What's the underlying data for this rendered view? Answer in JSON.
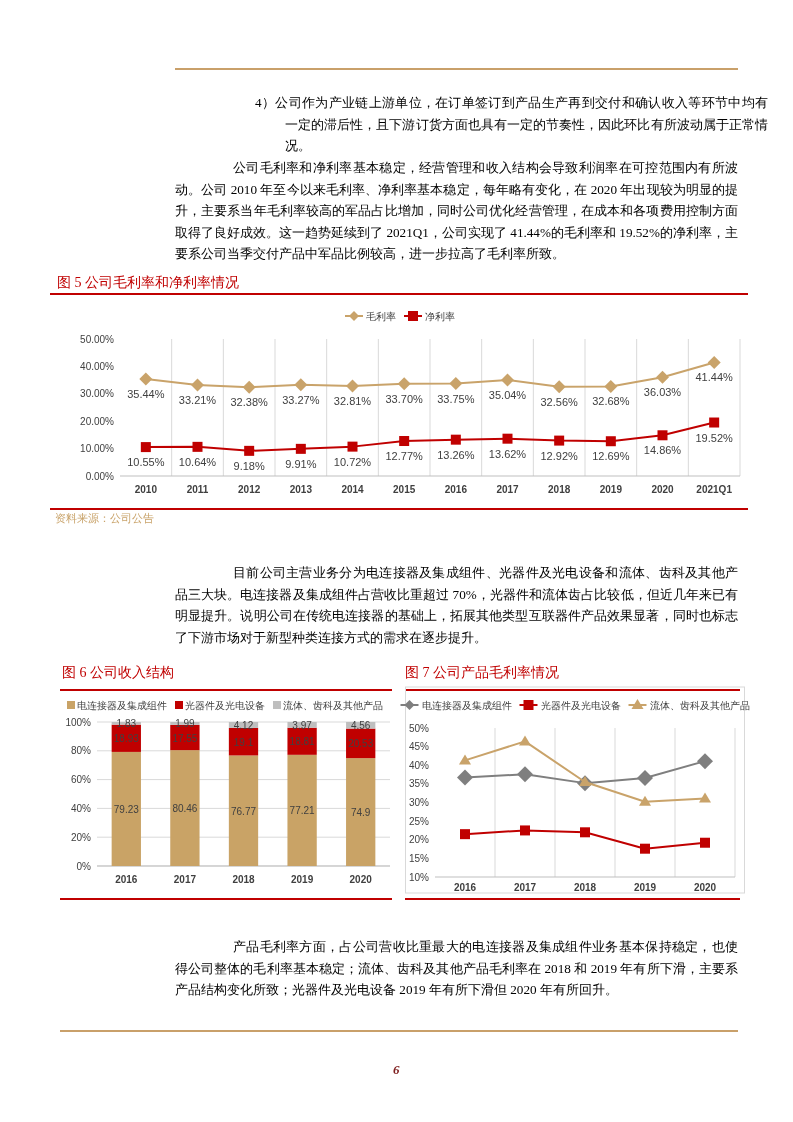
{
  "chart_data": [
    {
      "type": "line",
      "title": "图 5   公司毛利率和净利率情况",
      "categories": [
        "2010",
        "2011",
        "2012",
        "2013",
        "2014",
        "2015",
        "2016",
        "2017",
        "2018",
        "2019",
        "2020",
        "2021Q1"
      ],
      "series": [
        {
          "name": "毛利率",
          "color": "#c9a36a",
          "marker": "diamond",
          "values": [
            35.44,
            33.21,
            32.38,
            33.27,
            32.81,
            33.7,
            33.75,
            35.04,
            32.56,
            32.68,
            36.03,
            41.44
          ],
          "value_labels": [
            "35.44%",
            "33.21%",
            "32.38%",
            "33.27%",
            "32.81%",
            "33.70%",
            "33.75%",
            "35.04%",
            "32.56%",
            "32.68%",
            "36.03%",
            "41.44%"
          ]
        },
        {
          "name": "净利率",
          "color": "#c00000",
          "marker": "square",
          "values": [
            10.55,
            10.64,
            9.18,
            9.91,
            10.72,
            12.77,
            13.26,
            13.62,
            12.92,
            12.69,
            14.86,
            19.52
          ],
          "value_labels": [
            "10.55%",
            "10.64%",
            "9.18%",
            "9.91%",
            "10.72%",
            "12.77%",
            "13.26%",
            "13.62%",
            "12.92%",
            "12.69%",
            "14.86%",
            "19.52%"
          ]
        }
      ],
      "ylim": [
        0,
        50
      ],
      "yticks": [
        {
          "value": 0,
          "label": "0.00%"
        },
        {
          "value": 10,
          "label": "10.00%"
        },
        {
          "value": 20,
          "label": "20.00%"
        },
        {
          "value": 30,
          "label": "30.00%"
        },
        {
          "value": 40,
          "label": "40.00%"
        },
        {
          "value": 50,
          "label": "50.00%"
        }
      ],
      "grid": "x",
      "legend": "top",
      "annotations": [
        "4）公司作为产业链上游单位，在订单签订到产品生产再到交付和确认收入等环节中均有一定的滞后性，且下游订货方面也具有一定的节奏性，因此环比有所波动属于正常情况。",
        "公司毛利率和净利率基本稳定，经营管理和收入结构会导致利润率在可控范围内有所波动。公司 2010 年至今以来毛利率、净利率基本稳定，每年略有变化，在 2020 年出现较为明显的提升，主要系当年毛利率较高的军品占比增加，同时公司优化经营管理，在成本和各项费用控制方面取得了良好成效。这一趋势延续到了 2021Q1，公司实现了 41.44%的毛利率和 19.52%的净利率，主要系公司当季交付产品中军品比例较高，进一步拉高了毛利率所致。",
        "资料来源：公司公告"
      ]
    },
    {
      "type": "bar",
      "stacked": true,
      "title": "图 6   公司收入结构",
      "categories": [
        "2016",
        "2017",
        "2018",
        "2019",
        "2020"
      ],
      "series": [
        {
          "name": "电连接器及集成组件",
          "color": "#c9a366",
          "values": [
            79.23,
            80.46,
            76.77,
            77.21,
            74.9
          ]
        },
        {
          "name": "光器件及光电设备",
          "color": "#c00000",
          "values": [
            18.93,
            17.55,
            19.1,
            18.81,
            20.53
          ]
        },
        {
          "name": "流体、齿科及其他产品",
          "color": "#bfbfbf",
          "values": [
            1.83,
            1.99,
            4.12,
            3.97,
            4.56
          ]
        }
      ],
      "ylim": [
        0,
        100
      ],
      "yticks": [
        {
          "value": 0,
          "label": "0%"
        },
        {
          "value": 20,
          "label": "20%"
        },
        {
          "value": 40,
          "label": "40%"
        },
        {
          "value": 60,
          "label": "60%"
        },
        {
          "value": 80,
          "label": "80%"
        },
        {
          "value": 100,
          "label": "100%"
        }
      ],
      "grid": "y",
      "legend": "top",
      "data_labels": true,
      "annotations": [
        "目前公司主营业务分为电连接器及集成组件、光器件及光电设备和流体、齿科及其他产品三大块。电连接器及集成组件占营收比重超过 70%，光器件和流体齿占比较低，但近几年来已有明显提升。说明公司在传统电连接器的基础上，拓展其他类型互联器件产品效果显著，同时也标志了下游市场对于新型种类连接方式的需求在逐步提升。"
      ]
    },
    {
      "type": "line",
      "title": "图 7   公司产品毛利率情况",
      "categories": [
        "2016",
        "2017",
        "2018",
        "2019",
        "2020"
      ],
      "series": [
        {
          "name": "电连接器及集成组件",
          "color": "#7f7f7f",
          "marker": "diamond",
          "values": [
            36.7,
            37.6,
            35.2,
            36.6,
            41.1
          ]
        },
        {
          "name": "光器件及光电设备",
          "color": "#c00000",
          "marker": "square",
          "values": [
            21.5,
            22.5,
            22.0,
            17.6,
            19.2
          ]
        },
        {
          "name": "流体、齿科及其他产品",
          "color": "#c9a36a",
          "marker": "triangle",
          "values": [
            41.3,
            46.4,
            35.5,
            30.2,
            31.1
          ]
        }
      ],
      "ylim": [
        10,
        50
      ],
      "yticks": [
        {
          "value": 10,
          "label": "10%"
        },
        {
          "value": 15,
          "label": "15%"
        },
        {
          "value": 20,
          "label": "20%"
        },
        {
          "value": 25,
          "label": "25%"
        },
        {
          "value": 30,
          "label": "30%"
        },
        {
          "value": 35,
          "label": "35%"
        },
        {
          "value": 40,
          "label": "40%"
        },
        {
          "value": 45,
          "label": "45%"
        },
        {
          "value": 50,
          "label": "50%"
        }
      ],
      "grid": "x",
      "legend": "top",
      "annotations": [
        "产品毛利率方面，占公司营收比重最大的电连接器及集成组件业务基本保持稳定，也使得公司整体的毛利率基本稳定；流体、齿科及其他产品毛利率在 2018 和 2019 年有所下滑，主要系产品结构变化所致；光器件及光电设备 2019 年有所下滑但 2020 年有所回升。",
        "6"
      ]
    }
  ]
}
